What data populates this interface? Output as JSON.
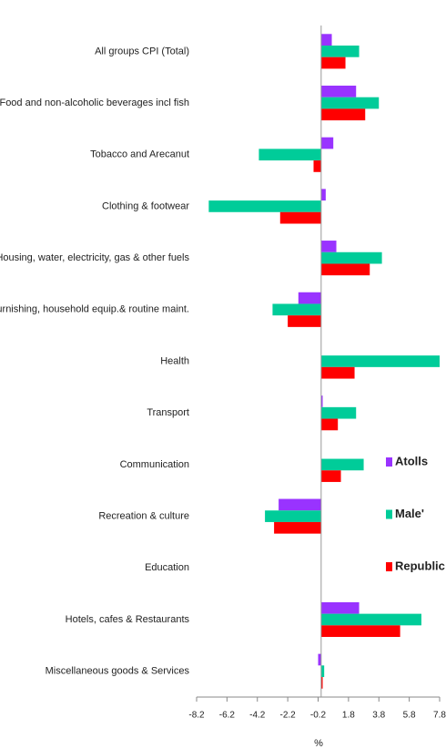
{
  "chart_data": {
    "type": "hbar",
    "categories": [
      "All groups CPI (Total)",
      "Food and non-alcoholic beverages incl fish",
      "Tobacco and Arecanut",
      "Clothing & footwear",
      "Housing, water, electricity, gas & other fuels",
      "Furnishing, household equip.& routine maint.",
      "Health",
      "Transport",
      "Communication",
      "Recreation & culture",
      "Education",
      "Hotels, cafes & Restaurants",
      "Miscellaneous goods & Services"
    ],
    "series": [
      {
        "name": "Atolls",
        "color": "#9933ff",
        "values": [
          0.7,
          2.3,
          0.8,
          0.3,
          1.0,
          -1.5,
          0,
          0.1,
          0,
          -2.8,
          0,
          2.5,
          -0.2
        ]
      },
      {
        "name": "Male'",
        "color": "#00cc99",
        "values": [
          2.5,
          3.8,
          -4.1,
          -7.4,
          4.0,
          -3.2,
          7.8,
          2.3,
          2.8,
          -3.7,
          0,
          6.6,
          0.2
        ]
      },
      {
        "name": "Republic",
        "color": "#ff0000",
        "values": [
          1.6,
          2.9,
          -0.5,
          -2.7,
          3.2,
          -2.2,
          2.2,
          1.1,
          1.3,
          -3.1,
          0,
          5.2,
          0.1
        ]
      }
    ],
    "xlabel": "%",
    "xlim": [
      -8.2,
      7.8
    ],
    "xticks": [
      -8.2,
      -6.2,
      -4.2,
      -2.2,
      -0.2,
      1.8,
      3.8,
      5.8,
      7.8
    ],
    "legend": "right"
  }
}
